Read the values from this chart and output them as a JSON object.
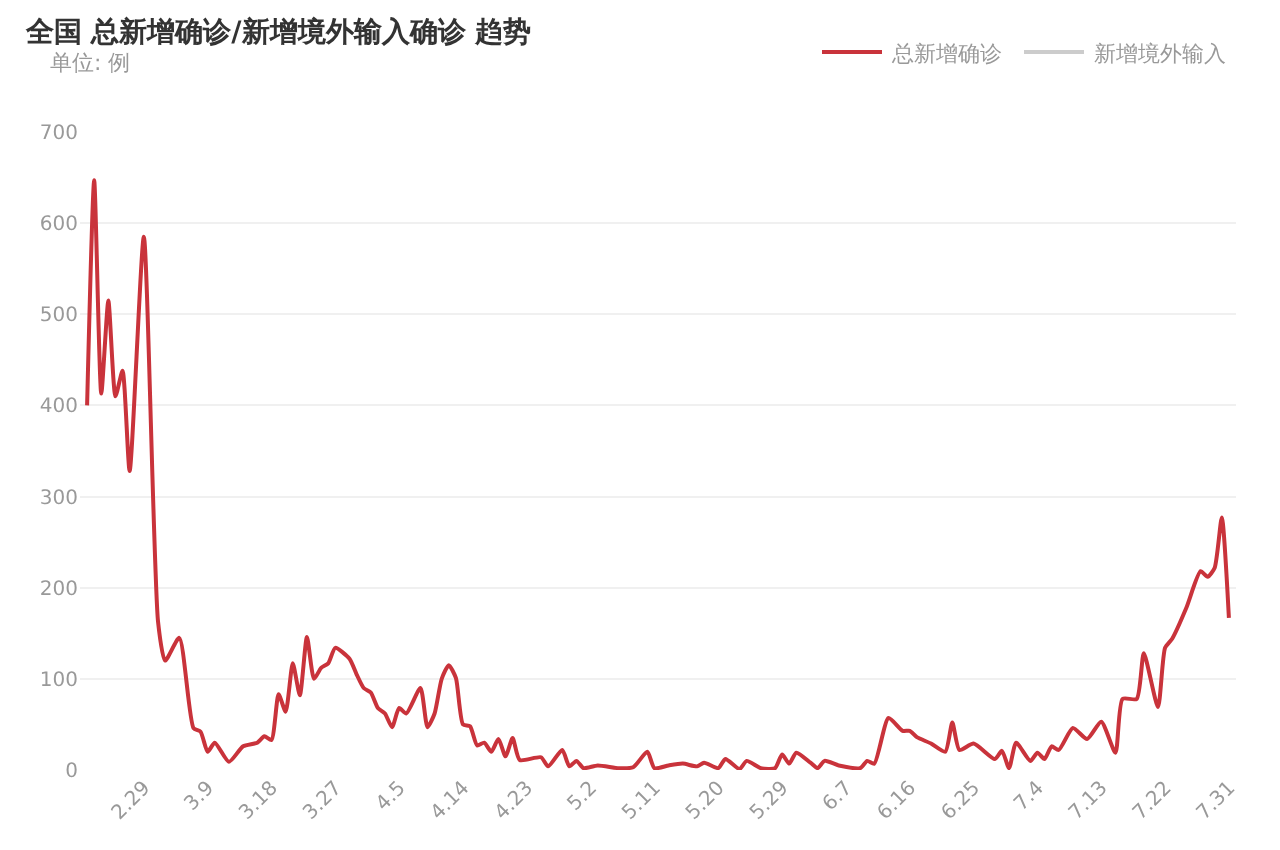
{
  "chart_data": {
    "type": "line",
    "title": "全国 总新增确诊/新增境外输入确诊 趋势",
    "subtitle": "单位: 例",
    "x": [
      "--02-21",
      "--02-22",
      "--02-23",
      "--02-24",
      "--02-25",
      "--02-26",
      "--02-27",
      "--02-29",
      "--03-02",
      "--03-03",
      "--03-05",
      "--03-07",
      "--03-08",
      "--03-09",
      "--03-10",
      "--03-12",
      "--03-14",
      "--03-16",
      "--03-17",
      "--03-18",
      "--03-19",
      "--03-20",
      "--03-21",
      "--03-22",
      "--03-23",
      "--03-24",
      "--03-25",
      "--03-26",
      "--03-27",
      "--03-29",
      "--03-30",
      "--03-31",
      "--04-01",
      "--04-02",
      "--04-03",
      "--04-04",
      "--04-05",
      "--04-06",
      "--04-08",
      "--04-09",
      "--04-10",
      "--04-11",
      "--04-12",
      "--04-13",
      "--04-14",
      "--04-15",
      "--04-16",
      "--04-17",
      "--04-18",
      "--04-19",
      "--04-20",
      "--04-21",
      "--04-22",
      "--04-25",
      "--04-26",
      "--04-28",
      "--04-29",
      "--04-30",
      "--05-01",
      "--05-03",
      "--05-06",
      "--05-08",
      "--05-10",
      "--05-11",
      "--05-13",
      "--05-15",
      "--05-17",
      "--05-18",
      "--05-20",
      "--05-21",
      "--05-23",
      "--05-24",
      "--05-26",
      "--05-28",
      "--05-29",
      "--05-30",
      "--05-31",
      "--06-02",
      "--06-03",
      "--06-04",
      "--06-06",
      "--06-09",
      "--06-10",
      "--06-11",
      "--06-13",
      "--06-15",
      "--06-16",
      "--06-17",
      "--06-19",
      "--06-21",
      "--06-22",
      "--06-23",
      "--06-25",
      "--06-28",
      "--06-29",
      "--06-30",
      "--07-01",
      "--07-03",
      "--07-04",
      "--07-05",
      "--07-06",
      "--07-07",
      "--07-09",
      "--07-11",
      "--07-13",
      "--07-15",
      "--07-16",
      "--07-18",
      "--07-19",
      "--07-21",
      "--07-22",
      "--07-23",
      "--07-25",
      "--07-27",
      "--07-28",
      "--07-29",
      "--07-30",
      "--07-31"
    ],
    "series": [
      {
        "name": "总新增确诊",
        "color": "#c9333b",
        "values": [
          400,
          647,
          413,
          515,
          410,
          438,
          328,
          585,
          163,
          120,
          145,
          46,
          42,
          20,
          30,
          9,
          26,
          30,
          37,
          33,
          83,
          64,
          117,
          82,
          146,
          100,
          112,
          117,
          134,
          122,
          105,
          90,
          85,
          68,
          62,
          47,
          68,
          62,
          90,
          47,
          62,
          100,
          115,
          101,
          50,
          48,
          27,
          30,
          20,
          34,
          15,
          35,
          11,
          14,
          4,
          22,
          4,
          10,
          2,
          5,
          2,
          3,
          20,
          2,
          5,
          7,
          4,
          8,
          2,
          12,
          1,
          10,
          2,
          2,
          17,
          7,
          19,
          8,
          2,
          10,
          5,
          2,
          10,
          7,
          57,
          43,
          43,
          36,
          29,
          20,
          52,
          22,
          29,
          12,
          21,
          2,
          30,
          10,
          19,
          12,
          26,
          22,
          46,
          34,
          53,
          19,
          78,
          78,
          128,
          69,
          134,
          144,
          178,
          218,
          212,
          222,
          277,
          167
        ]
      },
      {
        "name": "新增境外输入",
        "color": "#cccccc",
        "values": [
          null,
          null,
          null,
          null,
          null,
          null,
          null,
          null,
          null,
          null,
          null,
          null,
          null,
          null,
          null,
          null,
          null,
          null,
          null,
          null,
          null,
          null,
          null,
          null,
          null,
          null,
          null,
          null,
          null,
          null,
          null,
          null,
          null,
          null,
          null,
          null,
          null,
          null,
          null,
          null,
          null,
          null,
          null,
          null,
          null,
          null,
          null,
          null,
          null,
          null,
          null,
          null,
          null,
          null,
          null,
          null,
          null,
          null,
          null,
          null,
          null,
          null,
          null,
          null,
          null,
          null,
          null,
          null,
          null,
          null,
          null,
          null,
          null,
          null,
          null,
          null,
          null,
          null,
          null,
          null,
          null,
          null,
          null,
          null,
          null,
          null,
          null,
          null,
          null,
          null,
          null,
          null,
          null,
          null,
          null,
          null,
          null,
          null,
          null,
          null,
          null,
          null,
          null,
          null,
          null,
          null,
          null,
          null,
          null,
          null,
          null,
          null,
          null,
          null,
          null,
          null,
          null,
          null
        ]
      }
    ],
    "xlim": [
      "--02-20",
      "--08-01"
    ],
    "xticks": [
      {
        "value": "--02-29",
        "label": "2.29"
      },
      {
        "value": "--03-09",
        "label": "3.9"
      },
      {
        "value": "--03-18",
        "label": "3.18"
      },
      {
        "value": "--03-27",
        "label": "3.27"
      },
      {
        "value": "--04-05",
        "label": "4.5"
      },
      {
        "value": "--04-14",
        "label": "4.14"
      },
      {
        "value": "--04-23",
        "label": "4.23"
      },
      {
        "value": "--05-02",
        "label": "5.2"
      },
      {
        "value": "--05-11",
        "label": "5.11"
      },
      {
        "value": "--05-20",
        "label": "5.20"
      },
      {
        "value": "--05-29",
        "label": "5.29"
      },
      {
        "value": "--06-07",
        "label": "6.7"
      },
      {
        "value": "--06-16",
        "label": "6.16"
      },
      {
        "value": "--06-25",
        "label": "6.25"
      },
      {
        "value": "--07-04",
        "label": "7.4"
      },
      {
        "value": "--07-13",
        "label": "7.13"
      },
      {
        "value": "--07-22",
        "label": "7.22"
      },
      {
        "value": "--07-31",
        "label": "7.31"
      }
    ],
    "ylim": [
      0,
      700
    ],
    "yticks": [
      0,
      100,
      200,
      300,
      400,
      500,
      600,
      700
    ],
    "grid": "y",
    "legend": "top right",
    "marker": "none",
    "line_style": "solid"
  }
}
